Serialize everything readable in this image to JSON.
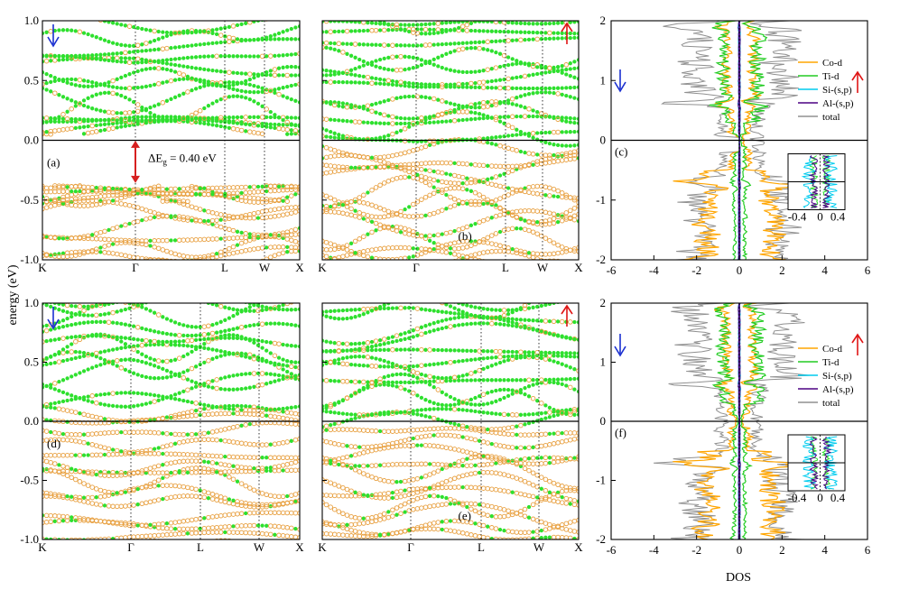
{
  "chart_data": {
    "type": "scatter",
    "ylabel": "energy (eV)",
    "xlabel": "DOS",
    "colors": {
      "down_arrow": "#1a2fd0",
      "up_arrow": "#e01515",
      "green": "#2ee02e",
      "orange": "#e8a040",
      "gap_arrow": "#d62020"
    },
    "panels": [
      {
        "id": "a",
        "label": "(a)",
        "type": "band_structure",
        "spin": "down",
        "arrow": "↓",
        "kpoints": [
          "K",
          "Γ",
          "L",
          "W",
          "X"
        ],
        "ylim": [
          -1.0,
          1.0
        ],
        "yticks": [
          "1.0",
          "0.5",
          "0.0",
          "-0.5",
          "-1.0"
        ],
        "annotation": {
          "text_prefix": "ΔE",
          "subscript": "g",
          "text_suffix": " = 0.40 eV",
          "gap_eV": 0.4,
          "from_eV": -0.38,
          "to_eV": 0.02
        }
      },
      {
        "id": "b",
        "label": "(b)",
        "type": "band_structure",
        "spin": "up",
        "arrow": "↑",
        "kpoints": [
          "K",
          "Γ",
          "L",
          "W",
          "X"
        ],
        "ylim": [
          -1.0,
          1.0
        ]
      },
      {
        "id": "c",
        "label": "(c)",
        "type": "dos",
        "ylim": [
          -2,
          2
        ],
        "xlim": [
          -6,
          6
        ],
        "xticks": [
          "-6",
          "-4",
          "-2",
          "0",
          "2",
          "4",
          "6"
        ],
        "yticks": [
          "2",
          "1",
          "0",
          "-1",
          "-2"
        ],
        "legend": [
          {
            "name": "Co-d",
            "color": "#ffa500"
          },
          {
            "name": "Ti-d",
            "color": "#22cc22"
          },
          {
            "name": "Si-(s,p)",
            "color": "#00ccee"
          },
          {
            "name": "Al-(s,p)",
            "color": "#4b0082"
          },
          {
            "name": "total",
            "color": "#909090"
          }
        ],
        "inset_xticks": [
          "-0.4",
          "0",
          "0.4"
        ]
      },
      {
        "id": "d",
        "label": "(d)",
        "type": "band_structure",
        "spin": "down",
        "arrow": "↓",
        "kpoints": [
          "K",
          "Γ",
          "L",
          "W",
          "X"
        ],
        "ylim": [
          -1.0,
          1.0
        ],
        "yticks": [
          "1.0",
          "0.5",
          "0.0",
          "-0.5",
          "-1.0"
        ]
      },
      {
        "id": "e",
        "label": "(e)",
        "type": "band_structure",
        "spin": "up",
        "arrow": "↑",
        "kpoints": [
          "K",
          "Γ",
          "L",
          "W",
          "X"
        ],
        "ylim": [
          -1.0,
          1.0
        ]
      },
      {
        "id": "f",
        "label": "(f)",
        "type": "dos",
        "ylim": [
          -2,
          2
        ],
        "xlim": [
          -6,
          6
        ],
        "xticks": [
          "-6",
          "-4",
          "-2",
          "0",
          "2",
          "4",
          "6"
        ],
        "yticks": [
          "2",
          "1",
          "0",
          "-1",
          "-2"
        ],
        "legend": [
          {
            "name": "Co-d",
            "color": "#ffa500"
          },
          {
            "name": "Ti-d",
            "color": "#22cc22"
          },
          {
            "name": "Si-(s,p)",
            "color": "#00ccee"
          },
          {
            "name": "Al-(s,p)",
            "color": "#4b0082"
          },
          {
            "name": "total",
            "color": "#909090"
          }
        ],
        "inset_xticks": [
          "-0.4",
          "0",
          "0.4"
        ]
      }
    ]
  }
}
